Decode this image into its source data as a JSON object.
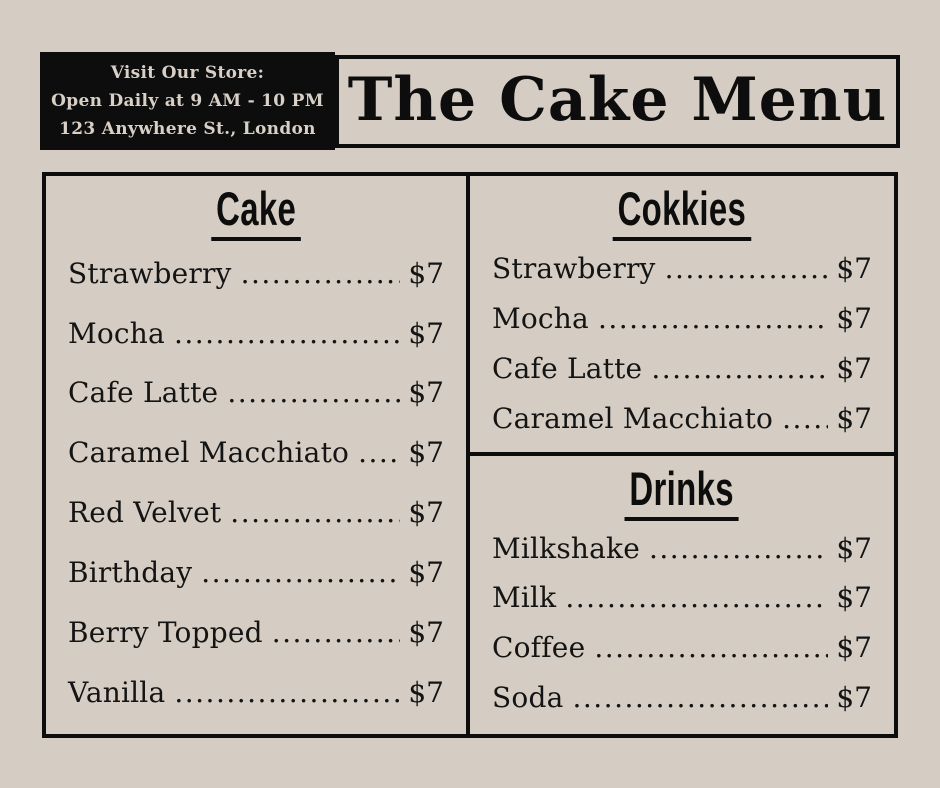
{
  "colors": {
    "background": "#d5cdc3",
    "ink": "#0d0d0d",
    "info_box_background": "#0d0d0d",
    "info_box_text": "#d8d0c6"
  },
  "header": {
    "info_lines": [
      "Visit Our Store:",
      "Open Daily at 9 AM - 10 PM",
      "123 Anywhere St., London"
    ],
    "title": "The Cake Menu"
  },
  "menu": {
    "dot_leader": "......................................................................",
    "sections": [
      {
        "title": "Cake",
        "items": [
          {
            "name": "Strawberry",
            "price": "$7"
          },
          {
            "name": "Mocha",
            "price": "$7"
          },
          {
            "name": "Cafe Latte",
            "price": "$7"
          },
          {
            "name": "Caramel Macchiato",
            "price": "$7"
          },
          {
            "name": "Red Velvet",
            "price": "$7"
          },
          {
            "name": "Birthday",
            "price": "$7"
          },
          {
            "name": "Berry Topped",
            "price": "$7"
          },
          {
            "name": "Vanilla",
            "price": "$7"
          }
        ]
      },
      {
        "title": "Cokkies",
        "items": [
          {
            "name": "Strawberry",
            "price": "$7"
          },
          {
            "name": "Mocha",
            "price": "$7"
          },
          {
            "name": "Cafe Latte",
            "price": "$7"
          },
          {
            "name": "Caramel Macchiato",
            "price": "$7"
          }
        ]
      },
      {
        "title": "Drinks",
        "items": [
          {
            "name": "Milkshake",
            "price": "$7"
          },
          {
            "name": "Milk",
            "price": "$7"
          },
          {
            "name": "Coffee",
            "price": "$7"
          },
          {
            "name": "Soda",
            "price": "$7"
          }
        ]
      }
    ]
  }
}
